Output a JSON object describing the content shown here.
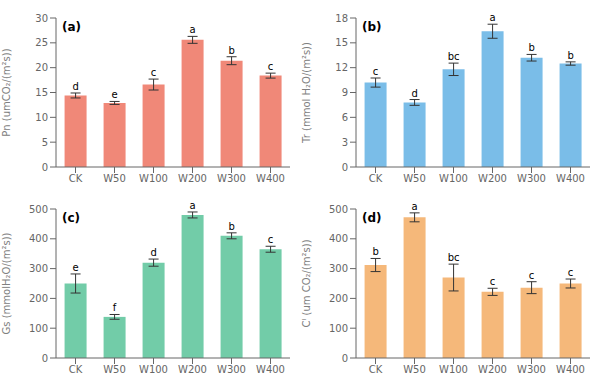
{
  "chart_data": [
    {
      "type": "bar",
      "title": "(a)",
      "ylabel": "Pn (umCO₂/(m²s))",
      "categories": [
        "CK",
        "W50",
        "W100",
        "W200",
        "W300",
        "W400"
      ],
      "values": [
        14.4,
        12.9,
        16.6,
        25.6,
        21.4,
        18.4
      ],
      "errors": [
        0.5,
        0.3,
        1.1,
        0.7,
        0.8,
        0.5
      ],
      "annotations": [
        "d",
        "e",
        "c",
        "a",
        "b",
        "c"
      ],
      "color": "#F08878",
      "ylim": [
        0,
        30
      ],
      "yticks": [
        0,
        5,
        10,
        15,
        20,
        25,
        30
      ],
      "grid": false
    },
    {
      "type": "bar",
      "title": "(b)",
      "ylabel": "Tr (mmol H₂O/(m²s))",
      "categories": [
        "CK",
        "W50",
        "W100",
        "W200",
        "W300",
        "W400"
      ],
      "values": [
        10.2,
        7.8,
        11.8,
        16.4,
        13.2,
        12.5
      ],
      "errors": [
        0.55,
        0.35,
        0.75,
        0.85,
        0.4,
        0.2
      ],
      "annotations": [
        "c",
        "d",
        "bc",
        "a",
        "b",
        "b"
      ],
      "color": "#7ABDE8",
      "ylim": [
        0,
        18
      ],
      "yticks": [
        0,
        3,
        6,
        9,
        12,
        15,
        18
      ],
      "grid": false
    },
    {
      "type": "bar",
      "title": "(c)",
      "ylabel": "Gs (mmolH₂O/(m²s))",
      "categories": [
        "CK",
        "W50",
        "W100",
        "W200",
        "W300",
        "W400"
      ],
      "values": [
        250,
        138,
        320,
        480,
        410,
        365
      ],
      "errors": [
        32,
        8,
        12,
        10,
        10,
        10
      ],
      "annotations": [
        "e",
        "f",
        "d",
        "a",
        "b",
        "c"
      ],
      "color": "#72CCA8",
      "ylim": [
        0,
        500
      ],
      "yticks": [
        0,
        100,
        200,
        300,
        400,
        500
      ],
      "grid": false
    },
    {
      "type": "bar",
      "title": "(d)",
      "ylabel": "Cᴵ (um CO₂/(m²s))",
      "categories": [
        "CK",
        "W50",
        "W100",
        "W200",
        "W300",
        "W400"
      ],
      "values": [
        312,
        472,
        270,
        222,
        236,
        250
      ],
      "errors": [
        22,
        15,
        45,
        12,
        20,
        15
      ],
      "annotations": [
        "b",
        "a",
        "bc",
        "c",
        "c",
        "c"
      ],
      "color": "#F5B87A",
      "ylim": [
        0,
        500
      ],
      "yticks": [
        0,
        100,
        200,
        300,
        400,
        500
      ],
      "grid": false
    }
  ]
}
